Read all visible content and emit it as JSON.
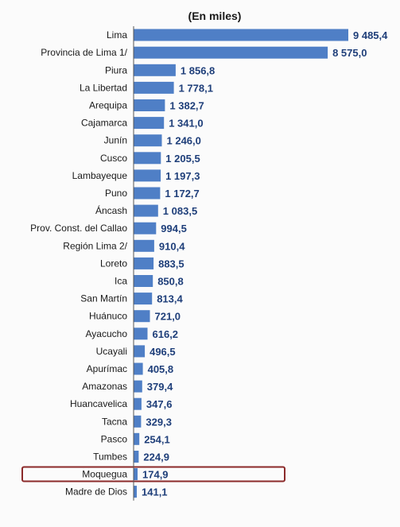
{
  "chart_data": {
    "type": "bar",
    "orientation": "horizontal",
    "title": "",
    "subtitle": "(En miles)",
    "xlabel": "",
    "ylabel": "",
    "xlim": [
      0,
      9485.4
    ],
    "grid": false,
    "legend": "none",
    "bar_color": "#4f7fc6",
    "highlight_color": "#8b2a2a",
    "highlight_category": "Moquegua",
    "categories": [
      "Lima",
      "Provincia de Lima 1/",
      "Piura",
      "La Libertad",
      "Arequipa",
      "Cajamarca",
      "Junín",
      "Cusco",
      "Lambayeque",
      "Puno",
      "Áncash",
      "Prov. Const. del Callao",
      "Región Lima 2/",
      "Loreto",
      "Ica",
      "San Martín",
      "Huánuco",
      "Ayacucho",
      "Ucayali",
      "Apurímac",
      "Amazonas",
      "Huancavelica",
      "Tacna",
      "Pasco",
      "Tumbes",
      "Moquegua",
      "Madre de Dios"
    ],
    "values": [
      9485.4,
      8575.0,
      1856.8,
      1778.1,
      1382.7,
      1341.0,
      1246.0,
      1205.5,
      1197.3,
      1172.7,
      1083.5,
      994.5,
      910.4,
      883.5,
      850.8,
      813.4,
      721.0,
      616.2,
      496.5,
      405.8,
      379.4,
      347.6,
      329.3,
      254.1,
      224.9,
      174.9,
      141.1
    ],
    "value_labels": [
      "9 485,4",
      "8 575,0",
      "1 856,8",
      "1 778,1",
      "1 382,7",
      "1 341,0",
      "1 246,0",
      "1 205,5",
      "1 197,3",
      "1 172,7",
      "1 083,5",
      "994,5",
      "910,4",
      "883,5",
      "850,8",
      "813,4",
      "721,0",
      "616,2",
      "496,5",
      "405,8",
      "379,4",
      "347,6",
      "329,3",
      "254,1",
      "224,9",
      "174,9",
      "141,1"
    ]
  }
}
